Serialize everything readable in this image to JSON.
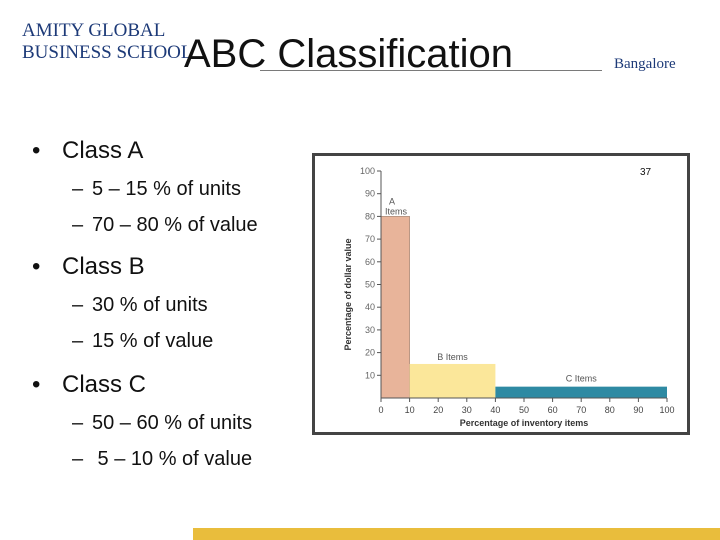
{
  "header": {
    "logo_line1": "AMITY GLOBAL",
    "logo_line2": "BUSINESS SCHOOL",
    "title": "ABC Classification",
    "location": "Bangalore"
  },
  "bullets": [
    {
      "label": "Class A",
      "subs": [
        "5 – 15 % of units",
        "70 – 80 % of value"
      ]
    },
    {
      "label": "Class B",
      "subs": [
        "30 % of units",
        "15 % of value"
      ]
    },
    {
      "label": "Class C",
      "subs": [
        "50 – 60 % of units",
        " 5 – 10 % of value"
      ]
    }
  ],
  "slide_number": "37",
  "colors": {
    "class_a": "#e8b49a",
    "class_b": "#fbe79a",
    "class_c": "#2e8aa3",
    "footer": "#e9bd3c",
    "logo": "#1d3a78"
  },
  "chart_data": {
    "type": "bar",
    "xlabel": "Percentage of inventory items",
    "ylabel": "Percentage of dollar value",
    "xlim": [
      0,
      100
    ],
    "ylim": [
      0,
      100
    ],
    "x_ticks": [
      0,
      10,
      20,
      30,
      40,
      50,
      60,
      70,
      80,
      90,
      100
    ],
    "y_ticks": [
      10,
      20,
      30,
      40,
      50,
      60,
      70,
      80,
      90,
      100
    ],
    "grid": false,
    "segments": [
      {
        "name": "A Items",
        "label_line1": "A",
        "label_line2": "Items",
        "x_start": 0,
        "x_end": 10,
        "value": 80,
        "color": "#e8b49a"
      },
      {
        "name": "B Items",
        "label_line1": "B Items",
        "label_line2": "",
        "x_start": 10,
        "x_end": 40,
        "value": 15,
        "color": "#fbe79a"
      },
      {
        "name": "C Items",
        "label_line1": "C Items",
        "label_line2": "",
        "x_start": 40,
        "x_end": 100,
        "value": 5,
        "color": "#2e8aa3"
      }
    ]
  }
}
